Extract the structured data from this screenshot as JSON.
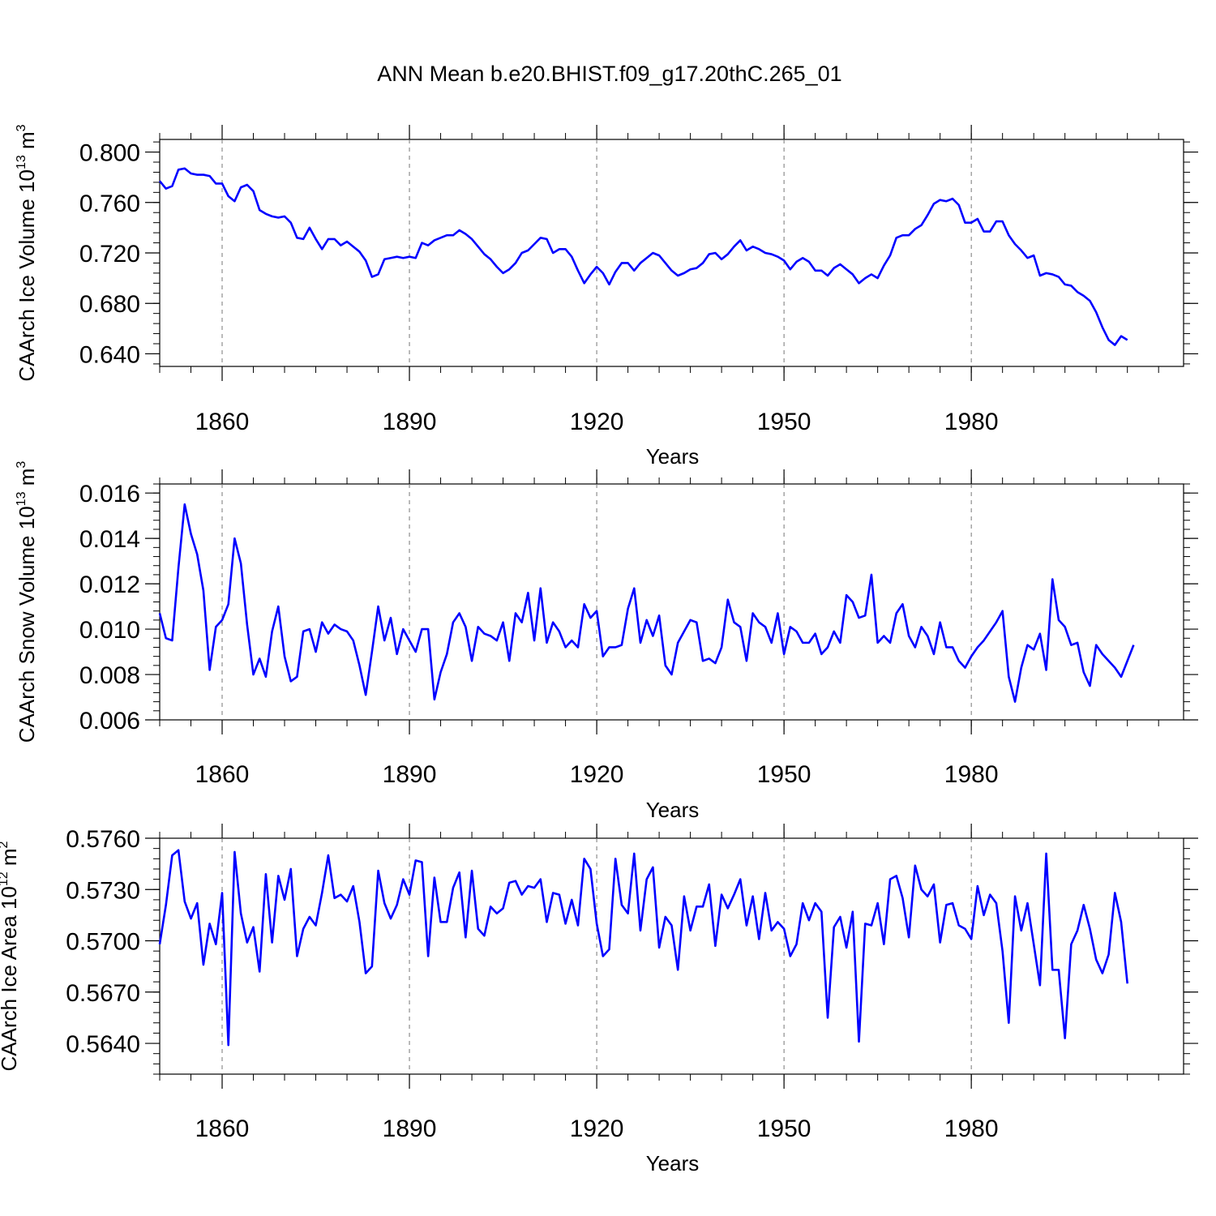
{
  "chart_data": {
    "type": "line",
    "title": "ANN Mean b.e20.BHIST.f09_g17.20thC.265_01",
    "line_color": "#0000ff",
    "x_start": 1850,
    "x_step": 1,
    "xlim": [
      1850,
      2014
    ],
    "panels": [
      {
        "id": "ice-volume",
        "type": "line",
        "ylabel": "CAArch Ice Volume 10",
        "ylabel_exp": "13",
        "ylabel_unit": " m",
        "ylabel_unit_exp": "3",
        "xlabel": "Years",
        "ylim": [
          0.63,
          0.81
        ],
        "yticks": [
          "0.640",
          "0.680",
          "0.720",
          "0.760",
          "0.800"
        ],
        "xticks": [
          "1860",
          "1890",
          "1920",
          "1950",
          "1980"
        ],
        "series": [
          {
            "name": "CAArch Ice Volume",
            "values": [
              0.777,
              0.771,
              0.773,
              0.786,
              0.787,
              0.783,
              0.782,
              0.782,
              0.781,
              0.775,
              0.775,
              0.765,
              0.761,
              0.772,
              0.774,
              0.769,
              0.754,
              0.751,
              0.749,
              0.748,
              0.749,
              0.744,
              0.732,
              0.731,
              0.74,
              0.731,
              0.723,
              0.731,
              0.731,
              0.726,
              0.729,
              0.725,
              0.721,
              0.714,
              0.701,
              0.703,
              0.715,
              0.716,
              0.717,
              0.716,
              0.717,
              0.716,
              0.728,
              0.726,
              0.73,
              0.732,
              0.734,
              0.734,
              0.738,
              0.735,
              0.731,
              0.725,
              0.719,
              0.715,
              0.709,
              0.704,
              0.707,
              0.712,
              0.72,
              0.722,
              0.727,
              0.732,
              0.731,
              0.72,
              0.723,
              0.723,
              0.717,
              0.706,
              0.696,
              0.703,
              0.709,
              0.704,
              0.695,
              0.705,
              0.712,
              0.712,
              0.706,
              0.712,
              0.716,
              0.72,
              0.718,
              0.712,
              0.706,
              0.702,
              0.704,
              0.707,
              0.708,
              0.712,
              0.719,
              0.72,
              0.715,
              0.719,
              0.725,
              0.73,
              0.722,
              0.725,
              0.723,
              0.72,
              0.719,
              0.717,
              0.714,
              0.707,
              0.713,
              0.716,
              0.713,
              0.706,
              0.706,
              0.702,
              0.708,
              0.711,
              0.707,
              0.703,
              0.696,
              0.7,
              0.703,
              0.7,
              0.71,
              0.718,
              0.732,
              0.734,
              0.734,
              0.739,
              0.742,
              0.75,
              0.759,
              0.762,
              0.761,
              0.763,
              0.758,
              0.744,
              0.744,
              0.747,
              0.737,
              0.737,
              0.745,
              0.745,
              0.734,
              0.727,
              0.722,
              0.716,
              0.718,
              0.702,
              0.704,
              0.703,
              0.701,
              0.695,
              0.694,
              0.689,
              0.686,
              0.682,
              0.673,
              0.661,
              0.651,
              0.647,
              0.654,
              0.651
            ]
          }
        ]
      },
      {
        "id": "snow-volume",
        "type": "line",
        "ylabel": "CAArch Snow Volume 10",
        "ylabel_exp": "13",
        "ylabel_unit": " m",
        "ylabel_unit_exp": "3",
        "xlabel": "Years",
        "ylim": [
          0.006,
          0.0164
        ],
        "yticks": [
          "0.006",
          "0.008",
          "0.010",
          "0.012",
          "0.014",
          "0.016"
        ],
        "xticks": [
          "1860",
          "1890",
          "1920",
          "1950",
          "1980"
        ],
        "series": [
          {
            "name": "CAArch Snow Volume",
            "values": [
              0.0107,
              0.0096,
              0.0095,
              0.0127,
              0.0155,
              0.0142,
              0.0133,
              0.0117,
              0.0082,
              0.0101,
              0.0104,
              0.0111,
              0.014,
              0.0129,
              0.0102,
              0.008,
              0.0087,
              0.0079,
              0.0099,
              0.011,
              0.0088,
              0.0077,
              0.0079,
              0.0099,
              0.01,
              0.009,
              0.0103,
              0.0098,
              0.0102,
              0.01,
              0.0099,
              0.0095,
              0.0084,
              0.0071,
              0.009,
              0.011,
              0.0095,
              0.0105,
              0.0089,
              0.01,
              0.0095,
              0.009,
              0.01,
              0.01,
              0.0069,
              0.0081,
              0.0089,
              0.0103,
              0.0107,
              0.0101,
              0.0086,
              0.0101,
              0.0098,
              0.0097,
              0.0095,
              0.0103,
              0.0086,
              0.0107,
              0.0103,
              0.0116,
              0.0095,
              0.0118,
              0.0094,
              0.0103,
              0.0099,
              0.0092,
              0.0095,
              0.0092,
              0.0111,
              0.0105,
              0.0108,
              0.0088,
              0.0092,
              0.0092,
              0.0093,
              0.0109,
              0.0118,
              0.0094,
              0.0104,
              0.0097,
              0.0106,
              0.0084,
              0.008,
              0.0094,
              0.0099,
              0.0104,
              0.0103,
              0.0086,
              0.0087,
              0.0085,
              0.0092,
              0.0113,
              0.0103,
              0.0101,
              0.0086,
              0.0107,
              0.0103,
              0.0101,
              0.0094,
              0.0107,
              0.0089,
              0.0101,
              0.0099,
              0.0094,
              0.0094,
              0.0098,
              0.0089,
              0.0092,
              0.0099,
              0.0094,
              0.0115,
              0.0112,
              0.0105,
              0.0106,
              0.0124,
              0.0094,
              0.0097,
              0.0094,
              0.0107,
              0.0111,
              0.0097,
              0.0092,
              0.0101,
              0.0097,
              0.0089,
              0.0103,
              0.0092,
              0.0092,
              0.0086,
              0.0083,
              0.0088,
              0.0092,
              0.0095,
              0.0099,
              0.0103,
              0.0108,
              0.0079,
              0.0068,
              0.0083,
              0.0093,
              0.0091,
              0.0098,
              0.0082,
              0.0122,
              0.0104,
              0.0101,
              0.0093,
              0.0094,
              0.0081,
              0.0075,
              0.0093,
              0.0089,
              0.0086,
              0.0083,
              0.0079,
              0.0086,
              0.0093
            ]
          }
        ]
      },
      {
        "id": "ice-area",
        "type": "line",
        "ylabel": "CAArch Ice Area 10",
        "ylabel_exp": "12",
        "ylabel_unit": " m",
        "ylabel_unit_exp": "2",
        "xlabel": "Years",
        "ylim": [
          0.5622,
          0.576
        ],
        "yticks": [
          "0.5640",
          "0.5670",
          "0.5700",
          "0.5730",
          "0.5760"
        ],
        "xticks": [
          "1860",
          "1890",
          "1920",
          "1950",
          "1980"
        ],
        "series": [
          {
            "name": "CAArch Ice Area",
            "values": [
              0.5698,
              0.5721,
              0.575,
              0.5753,
              0.5723,
              0.5713,
              0.5722,
              0.5686,
              0.571,
              0.5698,
              0.5728,
              0.5639,
              0.5752,
              0.5716,
              0.5699,
              0.5708,
              0.5682,
              0.5739,
              0.5699,
              0.5738,
              0.5724,
              0.5742,
              0.5691,
              0.5707,
              0.5714,
              0.5709,
              0.5728,
              0.575,
              0.5725,
              0.5727,
              0.5723,
              0.5732,
              0.5711,
              0.5681,
              0.5685,
              0.5741,
              0.5722,
              0.5713,
              0.5721,
              0.5736,
              0.5727,
              0.5747,
              0.5746,
              0.5691,
              0.5737,
              0.5711,
              0.5711,
              0.5731,
              0.574,
              0.5702,
              0.5741,
              0.5707,
              0.5703,
              0.572,
              0.5716,
              0.5719,
              0.5734,
              0.5735,
              0.5727,
              0.5732,
              0.5731,
              0.5736,
              0.5711,
              0.5728,
              0.5727,
              0.571,
              0.5724,
              0.5709,
              0.5748,
              0.5742,
              0.571,
              0.5691,
              0.5695,
              0.5748,
              0.5721,
              0.5716,
              0.5751,
              0.5706,
              0.5736,
              0.5743,
              0.5696,
              0.5714,
              0.5709,
              0.5683,
              0.5726,
              0.5706,
              0.572,
              0.572,
              0.5733,
              0.5697,
              0.5727,
              0.5719,
              0.5727,
              0.5736,
              0.5709,
              0.5726,
              0.5701,
              0.5728,
              0.5706,
              0.5711,
              0.5707,
              0.5691,
              0.5698,
              0.5722,
              0.5712,
              0.5722,
              0.5717,
              0.5655,
              0.5708,
              0.5714,
              0.5696,
              0.5717,
              0.5641,
              0.571,
              0.5709,
              0.5722,
              0.5698,
              0.5736,
              0.5738,
              0.5725,
              0.5702,
              0.5744,
              0.573,
              0.5726,
              0.5733,
              0.5699,
              0.5721,
              0.5722,
              0.5709,
              0.5707,
              0.5701,
              0.5732,
              0.5715,
              0.5727,
              0.5722,
              0.5694,
              0.5652,
              0.5726,
              0.5706,
              0.5722,
              0.5698,
              0.5674,
              0.5751,
              0.5683,
              0.5683,
              0.5643,
              0.5698,
              0.5706,
              0.5721,
              0.5707,
              0.5689,
              0.5681,
              0.5692,
              0.5728,
              0.5711,
              0.5675
            ]
          }
        ]
      }
    ]
  }
}
